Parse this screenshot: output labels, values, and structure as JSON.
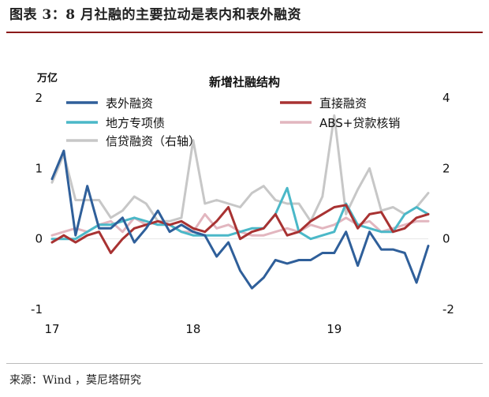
{
  "figure_title": "图表 3：8 月社融的主要拉动是表内和表外融资",
  "source": "来源：Wind ，莫尼塔研究",
  "chart_data": {
    "type": "line",
    "title": "新增社融结构",
    "left_unit": "万亿",
    "left_axis": {
      "ylim": [
        -1,
        2
      ],
      "ticks": [
        "-1",
        "0",
        "1",
        "2"
      ]
    },
    "right_axis": {
      "ylim": [
        -2,
        4
      ],
      "ticks": [
        "-2",
        "0",
        "2",
        "4"
      ]
    },
    "x_ticks": [
      "17",
      "18",
      "19"
    ],
    "x_tick_index": [
      0,
      12,
      24
    ],
    "grid": false,
    "legend_position": "top",
    "series": [
      {
        "name": "表外融资",
        "color": "#2f5f9a",
        "axis": "left",
        "values": [
          0.85,
          1.25,
          0.05,
          0.75,
          0.15,
          0.15,
          0.3,
          -0.05,
          0.15,
          0.4,
          0.1,
          0.2,
          0.1,
          0.05,
          -0.25,
          -0.05,
          -0.45,
          -0.7,
          -0.55,
          -0.3,
          -0.35,
          -0.3,
          -0.3,
          -0.2,
          -0.2,
          0.1,
          -0.38,
          0.1,
          -0.15,
          -0.15,
          -0.2,
          -0.62,
          -0.1
        ]
      },
      {
        "name": "直接融资",
        "color": "#a83232",
        "axis": "left",
        "values": [
          -0.05,
          0.05,
          -0.05,
          0.05,
          0.1,
          -0.2,
          0.0,
          0.15,
          0.2,
          0.25,
          0.2,
          0.25,
          0.15,
          0.1,
          0.25,
          0.45,
          0.0,
          0.1,
          0.15,
          0.35,
          0.05,
          0.1,
          0.25,
          0.35,
          0.45,
          0.48,
          0.15,
          0.35,
          0.38,
          0.1,
          0.15,
          0.3,
          0.35
        ]
      },
      {
        "name": "地方专项债",
        "color": "#4bb8c8",
        "axis": "left",
        "values": [
          0.0,
          0.0,
          0.0,
          0.1,
          0.2,
          0.2,
          0.25,
          0.3,
          0.25,
          0.2,
          0.2,
          0.1,
          0.05,
          0.05,
          0.05,
          0.05,
          0.1,
          0.15,
          0.15,
          0.35,
          0.72,
          0.1,
          0.0,
          0.05,
          0.1,
          0.5,
          0.2,
          0.15,
          0.1,
          0.1,
          0.35,
          0.45,
          0.35
        ]
      },
      {
        "name": "ABS+贷款核销",
        "color": "#e2b6bf",
        "axis": "left",
        "values": [
          0.05,
          0.1,
          0.15,
          0.1,
          0.2,
          0.25,
          0.1,
          0.3,
          0.2,
          0.25,
          0.2,
          0.1,
          0.1,
          0.35,
          0.15,
          0.2,
          0.1,
          0.05,
          0.05,
          0.1,
          0.15,
          0.1,
          0.2,
          0.15,
          0.2,
          0.3,
          0.2,
          0.25,
          0.1,
          0.15,
          0.2,
          0.25,
          0.25
        ]
      },
      {
        "name": "信贷融资（右轴）",
        "color": "#c7c7c7",
        "axis": "right",
        "values": [
          1.6,
          2.4,
          1.1,
          1.1,
          1.1,
          0.6,
          0.8,
          1.2,
          1.0,
          0.5,
          0.5,
          0.6,
          2.8,
          1.0,
          1.1,
          1.0,
          0.9,
          1.3,
          1.5,
          1.1,
          1.0,
          1.0,
          0.5,
          1.2,
          3.5,
          0.7,
          1.4,
          2.0,
          0.8,
          0.9,
          0.7,
          0.9,
          1.3
        ]
      }
    ]
  }
}
